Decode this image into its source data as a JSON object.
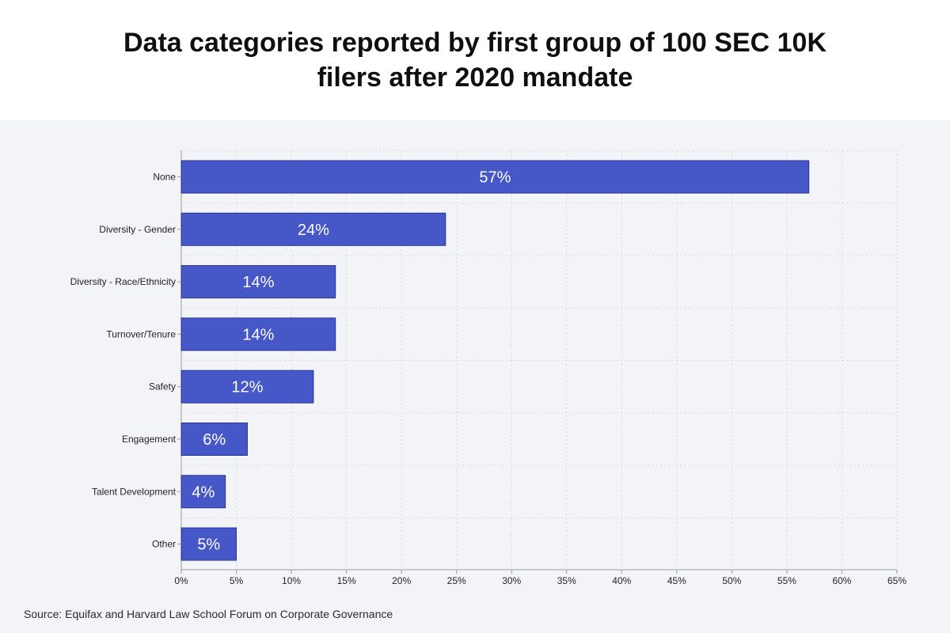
{
  "title": "Data categories reported by first group of 100 SEC 10K filers after 2020 mandate",
  "source": "Source: Equifax and Harvard Law School Forum on Corporate Governance",
  "colors": {
    "bar": "#4658c8",
    "bar_label": "#ffffff",
    "panel_background": "#f3f4f8",
    "grid": "#d8dbe4"
  },
  "chart_data": {
    "type": "bar",
    "orientation": "horizontal",
    "categories": [
      "None",
      "Diversity - Gender",
      "Diversity - Race/Ethnicity",
      "Turnover/Tenure",
      "Safety",
      "Engagement",
      "Talent Development",
      "Other"
    ],
    "values": [
      57,
      24,
      14,
      14,
      12,
      6,
      4,
      5
    ],
    "data_labels": [
      "57%",
      "24%",
      "14%",
      "14%",
      "12%",
      "6%",
      "4%",
      "5%"
    ],
    "x_ticks": [
      0,
      5,
      10,
      15,
      20,
      25,
      30,
      35,
      40,
      45,
      50,
      55,
      60,
      65
    ],
    "x_tick_labels": [
      "0%",
      "5%",
      "10%",
      "15%",
      "20%",
      "25%",
      "30%",
      "35%",
      "40%",
      "45%",
      "50%",
      "55%",
      "60%",
      "65%"
    ],
    "xlim": [
      0,
      65
    ],
    "grid": true,
    "xlabel": "",
    "ylabel": ""
  }
}
